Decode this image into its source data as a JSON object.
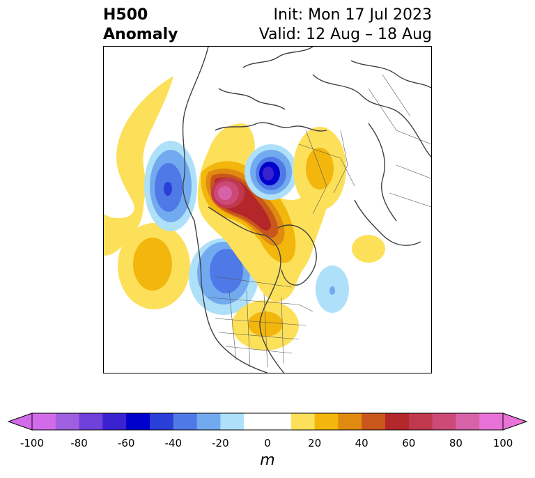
{
  "header": {
    "title_line1": "H500",
    "title_line2": "Anomaly",
    "init": "Init: Mon 17 Jul 2023",
    "valid": "Valid: 12 Aug – 18 Aug"
  },
  "colorbar": {
    "unit": "m",
    "tick_labels": [
      "-100",
      "-80",
      "-60",
      "-40",
      "-20",
      "0",
      "20",
      "40",
      "60",
      "80",
      "100"
    ],
    "colors": [
      "#d26bea",
      "#a05ee0",
      "#7040da",
      "#3a22d0",
      "#0000cc",
      "#2a3fd8",
      "#4f79e6",
      "#72aaf0",
      "#aee0fa",
      "#ffffff",
      "#ffffff",
      "#fde05a",
      "#f2b60c",
      "#e08a12",
      "#c9561a",
      "#b3262a",
      "#c0384e",
      "#cc4a78",
      "#d862a8",
      "#e872d8"
    ],
    "min_arrow_color": "#d26bea",
    "max_arrow_color": "#e872d8"
  }
}
